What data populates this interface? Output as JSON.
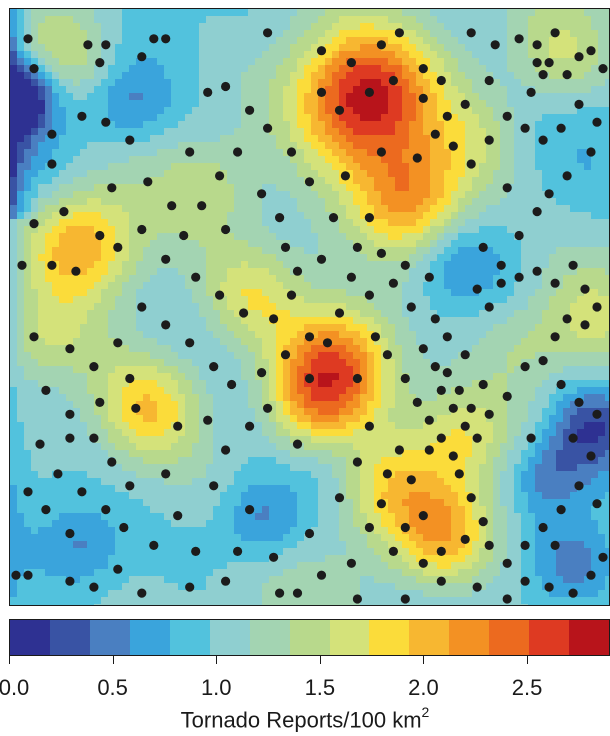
{
  "chart_data": {
    "type": "heatmap",
    "title": "",
    "colorbar": {
      "title": "Tornado Reports/100 km",
      "title_superscript": "2",
      "range": [
        0.0,
        2.9
      ],
      "ticks": [
        {
          "value": 0.0,
          "label": "0.0"
        },
        {
          "value": 0.5,
          "label": "0.5"
        },
        {
          "value": 1.0,
          "label": "1.0"
        },
        {
          "value": 1.5,
          "label": "1.5"
        },
        {
          "value": 2.0,
          "label": "2.0"
        },
        {
          "value": 2.5,
          "label": "2.5"
        }
      ],
      "colors": [
        "#2e3192",
        "#3953a4",
        "#4a7fc1",
        "#3aa4dc",
        "#52c2dd",
        "#8fcfd0",
        "#a3d4b2",
        "#b8d98c",
        "#d4e27a",
        "#fbdc3a",
        "#f7b731",
        "#f39123",
        "#ec6a1f",
        "#de3a22",
        "#b8141b"
      ]
    },
    "hotspots": [
      {
        "x": 0.59,
        "y": 0.15,
        "value": 2.8
      },
      {
        "x": 0.67,
        "y": 0.32,
        "value": 2.2
      },
      {
        "x": 0.12,
        "y": 0.39,
        "value": 2.1
      },
      {
        "x": 0.55,
        "y": 0.59,
        "value": 2.3
      },
      {
        "x": 0.51,
        "y": 0.67,
        "value": 1.9
      },
      {
        "x": 0.23,
        "y": 0.67,
        "value": 1.9
      },
      {
        "x": 0.72,
        "y": 0.88,
        "value": 2.0
      },
      {
        "x": 0.62,
        "y": 0.8,
        "value": 1.6
      },
      {
        "x": 0.4,
        "y": 0.48,
        "value": 1.6
      },
      {
        "x": 0.06,
        "y": 0.55,
        "value": 1.4
      },
      {
        "x": 0.1,
        "y": 0.07,
        "value": 1.5
      },
      {
        "x": 0.78,
        "y": 0.22,
        "value": 1.3
      },
      {
        "x": 0.33,
        "y": 0.3,
        "value": 1.4
      },
      {
        "x": 0.85,
        "y": 0.56,
        "value": 1.3
      },
      {
        "x": 0.96,
        "y": 0.52,
        "value": 1.4
      },
      {
        "x": 0.75,
        "y": 0.72,
        "value": 1.6
      },
      {
        "x": 0.92,
        "y": 0.08,
        "value": 1.5
      }
    ],
    "coldspots": [
      {
        "x": 0.02,
        "y": 0.15,
        "value": 0.0
      },
      {
        "x": 0.97,
        "y": 0.7,
        "value": 0.3
      },
      {
        "x": 0.42,
        "y": 0.86,
        "value": 0.5
      },
      {
        "x": 0.2,
        "y": 0.16,
        "value": 0.6
      },
      {
        "x": 0.12,
        "y": 0.9,
        "value": 0.6
      },
      {
        "x": 0.9,
        "y": 0.78,
        "value": 0.5
      },
      {
        "x": 0.55,
        "y": 0.75,
        "value": 0.8
      },
      {
        "x": 0.75,
        "y": 0.42,
        "value": 0.7
      },
      {
        "x": 0.95,
        "y": 0.93,
        "value": 0.6
      }
    ],
    "report_points": [
      [
        0.04,
        0.1
      ],
      [
        0.13,
        0.06
      ],
      [
        0.16,
        0.06
      ],
      [
        0.22,
        0.08
      ],
      [
        0.26,
        0.05
      ],
      [
        0.33,
        0.14
      ],
      [
        0.36,
        0.13
      ],
      [
        0.43,
        0.04
      ],
      [
        0.52,
        0.07
      ],
      [
        0.57,
        0.09
      ],
      [
        0.62,
        0.06
      ],
      [
        0.65,
        0.04
      ],
      [
        0.69,
        0.1
      ],
      [
        0.72,
        0.12
      ],
      [
        0.77,
        0.04
      ],
      [
        0.81,
        0.06
      ],
      [
        0.85,
        0.05
      ],
      [
        0.88,
        0.06
      ],
      [
        0.9,
        0.09
      ],
      [
        0.91,
        0.04
      ],
      [
        0.93,
        0.11
      ],
      [
        0.95,
        0.08
      ],
      [
        0.97,
        0.07
      ],
      [
        0.99,
        0.1
      ],
      [
        0.89,
        0.11
      ],
      [
        0.88,
        0.09
      ],
      [
        0.87,
        0.14
      ],
      [
        0.8,
        0.12
      ],
      [
        0.76,
        0.16
      ],
      [
        0.73,
        0.18
      ],
      [
        0.68,
        0.25
      ],
      [
        0.62,
        0.24
      ],
      [
        0.56,
        0.28
      ],
      [
        0.52,
        0.14
      ],
      [
        0.55,
        0.17
      ],
      [
        0.6,
        0.14
      ],
      [
        0.64,
        0.12
      ],
      [
        0.69,
        0.15
      ],
      [
        0.71,
        0.21
      ],
      [
        0.74,
        0.23
      ],
      [
        0.77,
        0.26
      ],
      [
        0.8,
        0.22
      ],
      [
        0.83,
        0.18
      ],
      [
        0.86,
        0.2
      ],
      [
        0.89,
        0.22
      ],
      [
        0.92,
        0.2
      ],
      [
        0.95,
        0.16
      ],
      [
        0.98,
        0.19
      ],
      [
        0.97,
        0.24
      ],
      [
        0.93,
        0.28
      ],
      [
        0.9,
        0.31
      ],
      [
        0.88,
        0.34
      ],
      [
        0.85,
        0.38
      ],
      [
        0.82,
        0.43
      ],
      [
        0.78,
        0.47
      ],
      [
        0.8,
        0.5
      ],
      [
        0.82,
        0.46
      ],
      [
        0.85,
        0.45
      ],
      [
        0.88,
        0.44
      ],
      [
        0.91,
        0.46
      ],
      [
        0.94,
        0.43
      ],
      [
        0.96,
        0.47
      ],
      [
        0.98,
        0.5
      ],
      [
        0.96,
        0.53
      ],
      [
        0.93,
        0.52
      ],
      [
        0.91,
        0.55
      ],
      [
        0.89,
        0.59
      ],
      [
        0.92,
        0.63
      ],
      [
        0.95,
        0.66
      ],
      [
        0.98,
        0.68
      ],
      [
        0.97,
        0.75
      ],
      [
        0.95,
        0.8
      ],
      [
        0.92,
        0.84
      ],
      [
        0.89,
        0.87
      ],
      [
        0.86,
        0.9
      ],
      [
        0.83,
        0.93
      ],
      [
        0.86,
        0.96
      ],
      [
        0.9,
        0.97
      ],
      [
        0.94,
        0.98
      ],
      [
        0.97,
        0.95
      ],
      [
        0.99,
        0.92
      ],
      [
        0.83,
        0.99
      ],
      [
        0.78,
        0.97
      ],
      [
        0.72,
        0.96
      ],
      [
        0.66,
        0.99
      ],
      [
        0.58,
        0.99
      ],
      [
        0.52,
        0.95
      ],
      [
        0.48,
        0.98
      ],
      [
        0.36,
        0.96
      ],
      [
        0.3,
        0.97
      ],
      [
        0.22,
        0.98
      ],
      [
        0.18,
        0.94
      ],
      [
        0.14,
        0.97
      ],
      [
        0.1,
        0.96
      ],
      [
        0.03,
        0.95
      ],
      [
        0.1,
        0.88
      ],
      [
        0.16,
        0.84
      ],
      [
        0.2,
        0.8
      ],
      [
        0.17,
        0.76
      ],
      [
        0.14,
        0.72
      ],
      [
        0.1,
        0.68
      ],
      [
        0.06,
        0.64
      ],
      [
        0.1,
        0.72
      ],
      [
        0.15,
        0.66
      ],
      [
        0.21,
        0.67
      ],
      [
        0.28,
        0.7
      ],
      [
        0.33,
        0.69
      ],
      [
        0.36,
        0.74
      ],
      [
        0.43,
        0.67
      ],
      [
        0.5,
        0.62
      ],
      [
        0.53,
        0.56
      ],
      [
        0.55,
        0.51
      ],
      [
        0.57,
        0.45
      ],
      [
        0.58,
        0.4
      ],
      [
        0.6,
        0.35
      ],
      [
        0.62,
        0.41
      ],
      [
        0.6,
        0.48
      ],
      [
        0.61,
        0.55
      ],
      [
        0.63,
        0.58
      ],
      [
        0.66,
        0.62
      ],
      [
        0.68,
        0.66
      ],
      [
        0.7,
        0.69
      ],
      [
        0.72,
        0.72
      ],
      [
        0.74,
        0.75
      ],
      [
        0.75,
        0.78
      ],
      [
        0.77,
        0.82
      ],
      [
        0.79,
        0.86
      ],
      [
        0.76,
        0.89
      ],
      [
        0.72,
        0.91
      ],
      [
        0.69,
        0.85
      ],
      [
        0.67,
        0.79
      ],
      [
        0.65,
        0.74
      ],
      [
        0.63,
        0.78
      ],
      [
        0.62,
        0.83
      ],
      [
        0.66,
        0.87
      ],
      [
        0.7,
        0.74
      ],
      [
        0.72,
        0.64
      ],
      [
        0.74,
        0.67
      ],
      [
        0.76,
        0.7
      ],
      [
        0.71,
        0.6
      ],
      [
        0.69,
        0.57
      ],
      [
        0.73,
        0.61
      ],
      [
        0.75,
        0.64
      ],
      [
        0.77,
        0.67
      ],
      [
        0.78,
        0.72
      ],
      [
        0.8,
        0.68
      ],
      [
        0.79,
        0.63
      ],
      [
        0.76,
        0.58
      ],
      [
        0.73,
        0.55
      ],
      [
        0.71,
        0.52
      ],
      [
        0.67,
        0.5
      ],
      [
        0.64,
        0.46
      ],
      [
        0.66,
        0.43
      ],
      [
        0.7,
        0.45
      ],
      [
        0.52,
        0.42
      ],
      [
        0.48,
        0.44
      ],
      [
        0.46,
        0.4
      ],
      [
        0.45,
        0.35
      ],
      [
        0.42,
        0.31
      ],
      [
        0.47,
        0.24
      ],
      [
        0.43,
        0.2
      ],
      [
        0.4,
        0.17
      ],
      [
        0.38,
        0.24
      ],
      [
        0.35,
        0.28
      ],
      [
        0.3,
        0.24
      ],
      [
        0.27,
        0.33
      ],
      [
        0.23,
        0.29
      ],
      [
        0.2,
        0.22
      ],
      [
        0.16,
        0.19
      ],
      [
        0.12,
        0.18
      ],
      [
        0.07,
        0.26
      ],
      [
        0.04,
        0.36
      ],
      [
        0.07,
        0.43
      ],
      [
        0.11,
        0.44
      ],
      [
        0.15,
        0.38
      ],
      [
        0.18,
        0.4
      ],
      [
        0.22,
        0.37
      ],
      [
        0.26,
        0.42
      ],
      [
        0.31,
        0.45
      ],
      [
        0.35,
        0.48
      ],
      [
        0.39,
        0.51
      ],
      [
        0.44,
        0.52
      ],
      [
        0.47,
        0.48
      ],
      [
        0.5,
        0.55
      ],
      [
        0.46,
        0.58
      ],
      [
        0.42,
        0.61
      ],
      [
        0.37,
        0.63
      ],
      [
        0.34,
        0.6
      ],
      [
        0.3,
        0.56
      ],
      [
        0.26,
        0.53
      ],
      [
        0.22,
        0.5
      ],
      [
        0.18,
        0.56
      ],
      [
        0.14,
        0.6
      ],
      [
        0.1,
        0.57
      ],
      [
        0.02,
        0.43
      ],
      [
        0.07,
        0.21
      ],
      [
        0.03,
        0.05
      ],
      [
        0.15,
        0.09
      ],
      [
        0.24,
        0.05
      ],
      [
        0.29,
        0.38
      ],
      [
        0.32,
        0.33
      ],
      [
        0.36,
        0.37
      ],
      [
        0.5,
        0.29
      ],
      [
        0.54,
        0.35
      ],
      [
        0.58,
        0.62
      ],
      [
        0.6,
        0.7
      ],
      [
        0.58,
        0.76
      ],
      [
        0.55,
        0.82
      ],
      [
        0.5,
        0.88
      ],
      [
        0.44,
        0.92
      ],
      [
        0.4,
        0.84
      ],
      [
        0.34,
        0.8
      ],
      [
        0.28,
        0.85
      ],
      [
        0.24,
        0.9
      ],
      [
        0.06,
        0.84
      ],
      [
        0.26,
        0.78
      ],
      [
        0.05,
        0.73
      ],
      [
        0.04,
        0.55
      ],
      [
        0.01,
        0.95
      ],
      [
        0.17,
        0.3
      ],
      [
        0.09,
        0.34
      ],
      [
        0.2,
        0.62
      ],
      [
        0.4,
        0.7
      ],
      [
        0.48,
        0.73
      ],
      [
        0.83,
        0.3
      ],
      [
        0.79,
        0.4
      ],
      [
        0.86,
        0.6
      ],
      [
        0.83,
        0.65
      ],
      [
        0.87,
        0.72
      ],
      [
        0.94,
        0.72
      ],
      [
        0.98,
        0.83
      ],
      [
        0.91,
        0.9
      ],
      [
        0.8,
        0.9
      ],
      [
        0.69,
        0.93
      ],
      [
        0.64,
        0.91
      ],
      [
        0.6,
        0.87
      ],
      [
        0.57,
        0.93
      ],
      [
        0.45,
        0.98
      ],
      [
        0.38,
        0.91
      ],
      [
        0.31,
        0.91
      ],
      [
        0.19,
        0.87
      ],
      [
        0.12,
        0.81
      ],
      [
        0.08,
        0.78
      ],
      [
        0.03,
        0.81
      ]
    ]
  }
}
